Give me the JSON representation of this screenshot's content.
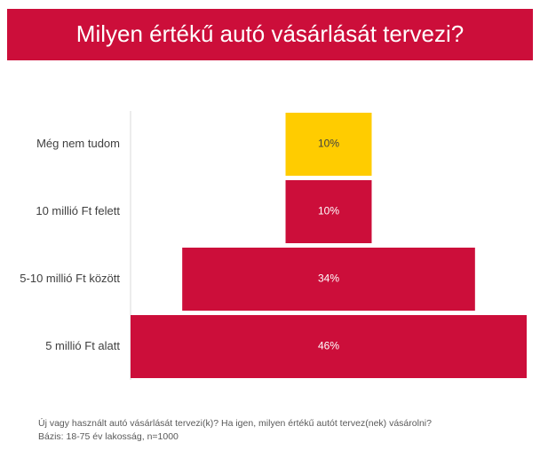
{
  "chart_data": {
    "type": "funnel",
    "title": "Milyen értékű autó vásárlását tervezi?",
    "categories": [
      "Még nem tudom",
      "10 millió Ft felett",
      "5-10 millió Ft között",
      "5 millió Ft alatt"
    ],
    "values": [
      10,
      10,
      34,
      46
    ],
    "value_labels": [
      "10%",
      "10%",
      "34%",
      "46%"
    ],
    "colors": [
      "#ffcc00",
      "#cc0e3a",
      "#cc0e3a",
      "#cc0e3a"
    ],
    "annotations": [
      "Új vagy használt autó vásárlását tervezi(k)? Ha igen, milyen értékű autót tervez(nek) vásárolni?",
      "Bázis: 18-75 év lakosság, n=1000"
    ]
  }
}
